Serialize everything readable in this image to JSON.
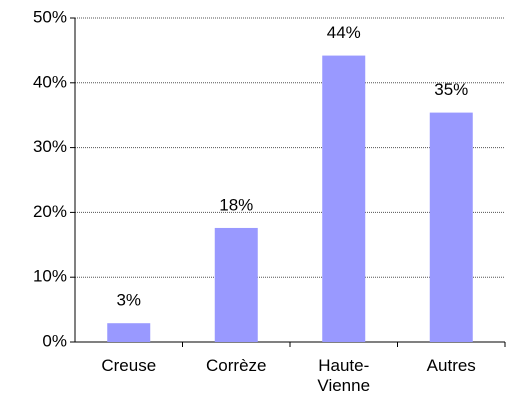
{
  "chart_data": {
    "type": "bar",
    "categories": [
      "Creuse",
      "Corrèze",
      "Haute-Vienne",
      "Autres"
    ],
    "values": [
      2.9,
      17.6,
      44.2,
      35.4
    ],
    "value_labels": [
      "3%",
      "18%",
      "44%",
      "35%"
    ],
    "color": "#9999ff",
    "ylim": [
      0,
      50
    ],
    "yticks": [
      {
        "value": 0,
        "label": "0%"
      },
      {
        "value": 10,
        "label": "10%"
      },
      {
        "value": 20,
        "label": "20%"
      },
      {
        "value": 30,
        "label": "30%"
      },
      {
        "value": 40,
        "label": "40%"
      },
      {
        "value": 50,
        "label": "50%"
      }
    ],
    "grid": true
  }
}
